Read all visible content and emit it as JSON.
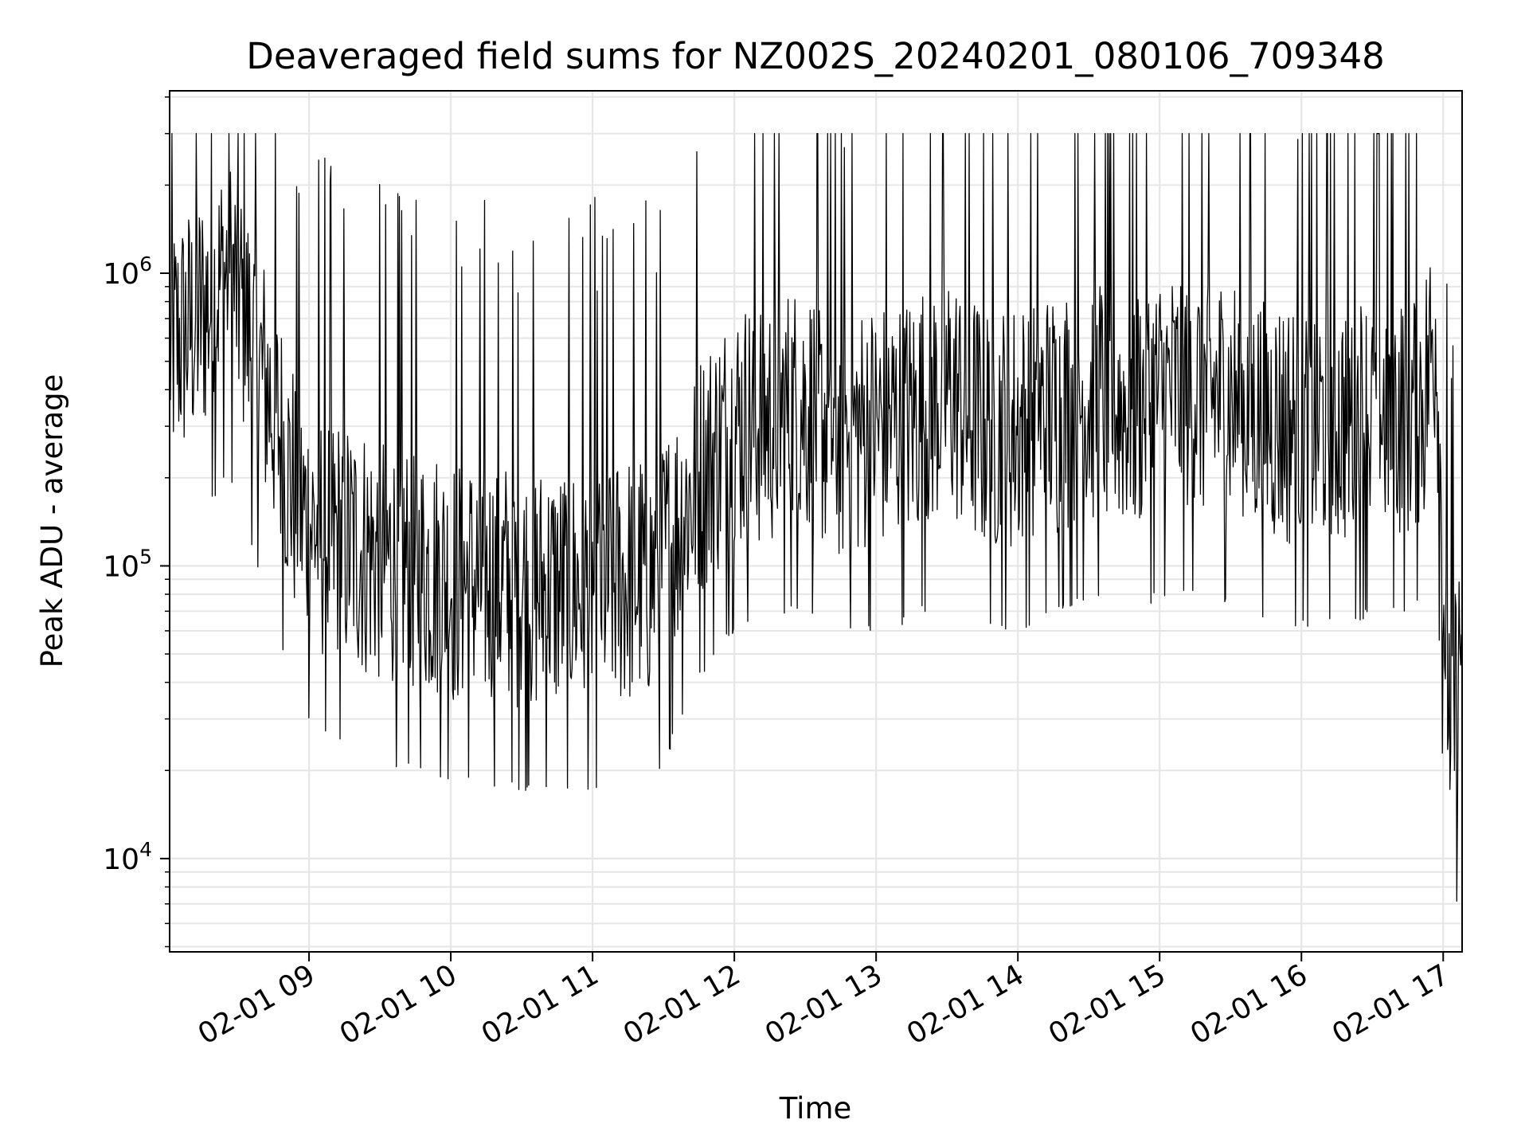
{
  "chart_data": {
    "type": "line",
    "title": "Deaveraged field sums for NZ002S_20240201_080106_709348",
    "xlabel": "Time",
    "ylabel": "Peak ADU - average",
    "yscale": "log",
    "x_range": [
      "2024-02-01 08:01",
      "2024-02-01 17:08"
    ],
    "ylim": [
      4800,
      4200000
    ],
    "grid": true,
    "legend": "none",
    "line_color": "#000000",
    "x_ticks": [
      "02-01 09",
      "02-01 10",
      "02-01 11",
      "02-01 12",
      "02-01 13",
      "02-01 14",
      "02-01 15",
      "02-01 16",
      "02-01 17"
    ],
    "y_ticks": [
      {
        "base": "10",
        "exp": "4",
        "value": 10000
      },
      {
        "base": "10",
        "exp": "5",
        "value": 100000
      },
      {
        "base": "10",
        "exp": "6",
        "value": 1000000
      }
    ],
    "series": [
      {
        "x": [
          "2024-02-01 08:01",
          "2024-02-01 08:10",
          "2024-02-01 08:18",
          "2024-02-01 08:25",
          "2024-02-01 08:29",
          "2024-02-01 08:33",
          "2024-02-01 08:38",
          "2024-02-01 08:45",
          "2024-02-01 08:52",
          "2024-02-01 08:57",
          "2024-02-01 09:05",
          "2024-02-01 09:15",
          "2024-02-01 09:27",
          "2024-02-01 09:40",
          "2024-02-01 09:52",
          "2024-02-01 10:00",
          "2024-02-01 10:15",
          "2024-02-01 10:30",
          "2024-02-01 10:45",
          "2024-02-01 11:00",
          "2024-02-01 11:15",
          "2024-02-01 11:28",
          "2024-02-01 11:35",
          "2024-02-01 11:45",
          "2024-02-01 12:00",
          "2024-02-01 12:15",
          "2024-02-01 12:30",
          "2024-02-01 12:45",
          "2024-02-01 13:00",
          "2024-02-01 13:15",
          "2024-02-01 13:30",
          "2024-02-01 13:45",
          "2024-02-01 14:00",
          "2024-02-01 14:15",
          "2024-02-01 14:30",
          "2024-02-01 14:45",
          "2024-02-01 15:00",
          "2024-02-01 15:15",
          "2024-02-01 15:30",
          "2024-02-01 15:45",
          "2024-02-01 16:00",
          "2024-02-01 16:15",
          "2024-02-01 16:30",
          "2024-02-01 16:45",
          "2024-02-01 16:52",
          "2024-02-01 16:57",
          "2024-02-01 17:00",
          "2024-02-01 17:03",
          "2024-02-01 17:06",
          "2024-02-01 17:08"
        ],
        "y": [
          550000,
          650000,
          800000,
          1000000,
          900000,
          700000,
          500000,
          350000,
          200000,
          150000,
          130000,
          120000,
          110000,
          100000,
          95000,
          90000,
          88000,
          85000,
          83000,
          85000,
          90000,
          95000,
          130000,
          200000,
          300000,
          320000,
          350000,
          280000,
          300000,
          320000,
          400000,
          300000,
          300000,
          330000,
          380000,
          350000,
          380000,
          400000,
          370000,
          330000,
          300000,
          320000,
          330000,
          340000,
          380000,
          700000,
          85000,
          30000,
          35000,
          60000
        ]
      }
    ]
  }
}
